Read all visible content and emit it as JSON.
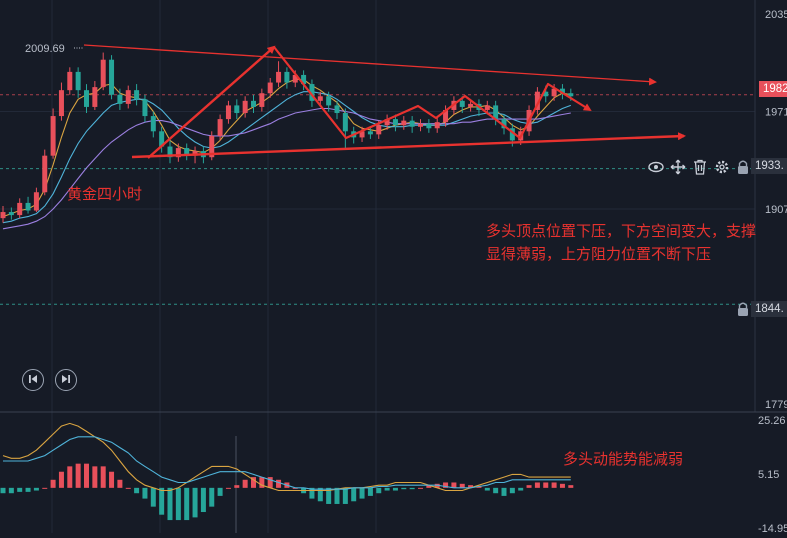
{
  "annotations": {
    "title": "黄金四小时",
    "note_line1": "多头顶点位置下压，下方空间变大，支撑",
    "note_line2": "显得薄弱，上方阻力位置不断下压",
    "macd_note": "多头动能势能减弱"
  },
  "price_axis": {
    "tick_labels": [
      "2035",
      "1971",
      "1907",
      "1779"
    ],
    "current_price": "1982",
    "line_price_1": "1933.",
    "line_price_2": "1844.",
    "high_label": "2009.69"
  },
  "macd_axis": {
    "tick_labels": [
      "25.26",
      "5.15",
      "-14.95"
    ]
  },
  "icons": [
    "eye-icon",
    "move-icon",
    "trash-icon",
    "gear-icon",
    "lock-icon",
    "skip-back-icon",
    "skip-forward-icon"
  ],
  "colors": {
    "up": "#e8505b",
    "down": "#26a69a",
    "background": "#161b26",
    "annotation": "#e8322f",
    "ma_fast": "#d9a441",
    "ma_mid": "#4fb3d9",
    "ma_slow": "#9b7fe0"
  },
  "chart_data": {
    "type": "candlestick",
    "timeframe_note": "4-hour gold",
    "ylim": [
      1779,
      2035
    ],
    "candles": [
      [
        1901,
        1905,
        1898,
        1909
      ],
      [
        1905,
        1903,
        1900,
        1908
      ],
      [
        1903,
        1911,
        1901,
        1914
      ],
      [
        1911,
        1906,
        1904,
        1915
      ],
      [
        1906,
        1918,
        1905,
        1921
      ],
      [
        1918,
        1942,
        1916,
        1946
      ],
      [
        1942,
        1968,
        1940,
        1973
      ],
      [
        1968,
        1985,
        1965,
        1990
      ],
      [
        1985,
        1997,
        1982,
        2000
      ],
      [
        1997,
        1985,
        1980,
        2000
      ],
      [
        1985,
        1974,
        1970,
        1989
      ],
      [
        1974,
        1987,
        1972,
        1991
      ],
      [
        1987,
        2005,
        1985,
        2009.69
      ],
      [
        2005,
        1982,
        1979,
        2008
      ],
      [
        1982,
        1976,
        1972,
        1986
      ],
      [
        1976,
        1985,
        1973,
        1988
      ],
      [
        1985,
        1979,
        1975,
        1989
      ],
      [
        1979,
        1968,
        1964,
        1982
      ],
      [
        1968,
        1958,
        1954,
        1971
      ],
      [
        1958,
        1948,
        1944,
        1961
      ],
      [
        1948,
        1941,
        1937,
        1952
      ],
      [
        1941,
        1947,
        1938,
        1950
      ],
      [
        1947,
        1942,
        1939,
        1950
      ],
      [
        1942,
        1945,
        1937,
        1948
      ],
      [
        1945,
        1941,
        1937,
        1948
      ],
      [
        1941,
        1955,
        1939,
        1958
      ],
      [
        1955,
        1966,
        1952,
        1969
      ],
      [
        1966,
        1975,
        1963,
        1978
      ],
      [
        1975,
        1970,
        1966,
        1979
      ],
      [
        1970,
        1978,
        1967,
        1981
      ],
      [
        1978,
        1974,
        1970,
        1982
      ],
      [
        1974,
        1983,
        1971,
        1986
      ],
      [
        1983,
        1990,
        1980,
        1993
      ],
      [
        1990,
        1997,
        1987,
        2004
      ],
      [
        1997,
        1990,
        1986,
        2000
      ],
      [
        1990,
        1995,
        1987,
        1998
      ],
      [
        1995,
        1989,
        1985,
        1998
      ],
      [
        1989,
        1978,
        1974,
        1992
      ],
      [
        1978,
        1981,
        1975,
        1984
      ],
      [
        1981,
        1975,
        1971,
        1984
      ],
      [
        1975,
        1970,
        1966,
        1978
      ],
      [
        1970,
        1958,
        1946,
        1973
      ],
      [
        1958,
        1954,
        1950,
        1961
      ],
      [
        1954,
        1958,
        1951,
        1961
      ],
      [
        1958,
        1956,
        1953,
        1961
      ],
      [
        1956,
        1962,
        1953,
        1965
      ],
      [
        1962,
        1966,
        1959,
        1969
      ],
      [
        1966,
        1962,
        1958,
        1969
      ],
      [
        1962,
        1965,
        1959,
        1968
      ],
      [
        1965,
        1961,
        1957,
        1968
      ],
      [
        1961,
        1963,
        1958,
        1966
      ],
      [
        1963,
        1960,
        1957,
        1966
      ],
      [
        1960,
        1964,
        1957,
        1967
      ],
      [
        1964,
        1972,
        1961,
        1975
      ],
      [
        1972,
        1978,
        1969,
        1981
      ],
      [
        1978,
        1974,
        1970,
        1981
      ],
      [
        1974,
        1976,
        1971,
        1979
      ],
      [
        1976,
        1972,
        1968,
        1979
      ],
      [
        1972,
        1975,
        1969,
        1978
      ],
      [
        1975,
        1966,
        1962,
        1978
      ],
      [
        1966,
        1960,
        1956,
        1969
      ],
      [
        1960,
        1952,
        1948,
        1963
      ],
      [
        1952,
        1958,
        1949,
        1961
      ],
      [
        1958,
        1972,
        1955,
        1975
      ],
      [
        1972,
        1984,
        1969,
        1987
      ],
      [
        1984,
        1981,
        1977,
        1988
      ],
      [
        1981,
        1986,
        1978,
        1989
      ],
      [
        1986,
        1983,
        1979,
        1989
      ],
      [
        1983,
        1981,
        1978,
        1986
      ]
    ],
    "series": [
      {
        "values": [
          1902,
          1904,
          1906,
          1907,
          1910,
          1920,
          1936,
          1954,
          1970,
          1979,
          1982,
          1983,
          1988,
          1989,
          1983,
          1981,
          1980,
          1978,
          1971,
          1962,
          1952,
          1948,
          1946,
          1945,
          1944,
          1947,
          1952,
          1959,
          1965,
          1971,
          1974,
          1977,
          1981,
          1986,
          1990,
          1992,
          1992,
          1988,
          1985,
          1981,
          1977,
          1970,
          1963,
          1960,
          1959,
          1958,
          1960,
          1962,
          1963,
          1964,
          1963,
          1962,
          1962,
          1964,
          1969,
          1972,
          1974,
          1974,
          1975,
          1972,
          1967,
          1962,
          1959,
          1961,
          1968,
          1974,
          1980,
          1983,
          1982
        ]
      },
      {
        "values": [
          1898,
          1899,
          1901,
          1902,
          1904,
          1909,
          1917,
          1928,
          1940,
          1950,
          1958,
          1964,
          1970,
          1975,
          1977,
          1978,
          1979,
          1979,
          1976,
          1972,
          1966,
          1960,
          1955,
          1951,
          1948,
          1947,
          1948,
          1951,
          1955,
          1959,
          1963,
          1967,
          1971,
          1975,
          1979,
          1982,
          1984,
          1984,
          1983,
          1982,
          1979,
          1975,
          1971,
          1967,
          1964,
          1962,
          1961,
          1961,
          1961,
          1962,
          1962,
          1962,
          1962,
          1962,
          1964,
          1966,
          1968,
          1969,
          1970,
          1970,
          1969,
          1966,
          1964,
          1963,
          1964,
          1967,
          1970,
          1973,
          1975
        ]
      },
      {
        "values": [
          1894,
          1895,
          1896,
          1897,
          1899,
          1902,
          1907,
          1913,
          1920,
          1927,
          1934,
          1940,
          1946,
          1951,
          1955,
          1959,
          1962,
          1964,
          1965,
          1965,
          1964,
          1962,
          1960,
          1958,
          1956,
          1955,
          1955,
          1955,
          1956,
          1957,
          1959,
          1961,
          1963,
          1966,
          1968,
          1970,
          1971,
          1972,
          1973,
          1973,
          1972,
          1971,
          1970,
          1968,
          1966,
          1965,
          1964,
          1963,
          1963,
          1963,
          1963,
          1963,
          1963,
          1963,
          1963,
          1964,
          1964,
          1965,
          1966,
          1966,
          1966,
          1966,
          1966,
          1966,
          1966,
          1967,
          1968,
          1969,
          1970
        ]
      }
    ],
    "macd": {
      "ylim": [
        -14.95,
        25.26
      ],
      "histogram": [
        -2,
        -2,
        -1.5,
        -1.5,
        -1,
        0,
        3,
        6,
        8,
        9,
        9,
        8,
        8,
        6,
        3,
        0,
        -2,
        -4,
        -7,
        -10,
        -12,
        -12,
        -12,
        -11,
        -9,
        -7,
        -3,
        0,
        1,
        3,
        4,
        4,
        4,
        3,
        2,
        0,
        -2,
        -4,
        -5,
        -6,
        -6,
        -6,
        -5,
        -4,
        -3,
        -2,
        -1,
        -1,
        -0.5,
        -0.5,
        0,
        1,
        1.5,
        2,
        2,
        1.5,
        1,
        0.5,
        -1,
        -2,
        -3,
        -2,
        -1,
        1,
        2,
        2,
        2,
        1.5,
        1
      ],
      "dif": [
        12,
        11,
        11,
        12,
        14,
        17,
        20,
        23,
        24,
        23,
        21,
        19,
        17,
        14,
        10,
        6,
        3,
        1,
        0,
        -1,
        -1,
        0,
        2,
        4,
        6,
        8,
        8,
        8,
        7,
        5,
        3,
        1,
        0,
        -1,
        -1,
        -1,
        -1,
        -1,
        -1,
        -1,
        -0.5,
        0,
        0,
        0,
        0.5,
        1,
        1,
        2,
        2,
        2,
        2,
        1,
        0,
        -1,
        -1,
        -1,
        0,
        1,
        2,
        3,
        4,
        5,
        5,
        4,
        4,
        4,
        4,
        4,
        4
      ],
      "dea": [
        10,
        10,
        10,
        10,
        11,
        12,
        14,
        16,
        18,
        19,
        19,
        19,
        18,
        17,
        15,
        13,
        10,
        8,
        6,
        4,
        3,
        2,
        2,
        3,
        4,
        5,
        6,
        6,
        6,
        6,
        5,
        4,
        3,
        2,
        1,
        0,
        0,
        -0.5,
        -0.5,
        -0.5,
        -0.5,
        -0.5,
        0,
        0,
        0,
        0.5,
        0.5,
        1,
        1,
        1,
        1,
        1,
        1,
        0.5,
        0,
        0,
        0,
        0.5,
        1,
        2,
        2,
        3,
        3,
        3,
        3,
        3,
        3,
        3,
        3
      ]
    }
  }
}
